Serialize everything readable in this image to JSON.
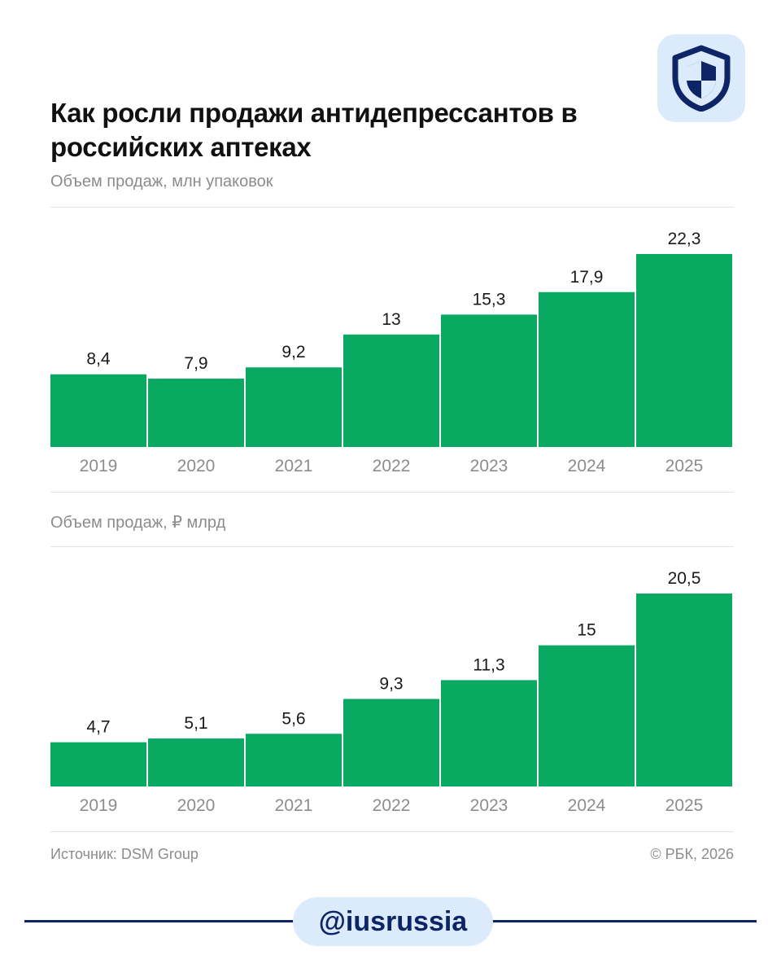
{
  "title": "Как росли продажи антидепрессантов в российских аптеках",
  "colors": {
    "bar": "#0aa962",
    "label": "#1a1a1a",
    "tick": "#8c8c8c",
    "brand": "#0d2466",
    "badge": "#dcebfb"
  },
  "icons": {
    "logo": "shield-icon"
  },
  "chart_data": [
    {
      "type": "bar",
      "title": "Объем продаж, млн упаковок",
      "xlabel": "",
      "ylabel": "",
      "categories": [
        "2019",
        "2020",
        "2021",
        "2022",
        "2023",
        "2024",
        "2025"
      ],
      "values": [
        8.4,
        7.9,
        9.2,
        13,
        15.3,
        17.9,
        22.3
      ],
      "value_labels": [
        "8,4",
        "7,9",
        "9,2",
        "13",
        "15,3",
        "17,9",
        "22,3"
      ],
      "ylim": [
        0,
        22.3
      ],
      "grid": false
    },
    {
      "type": "bar",
      "title": "Объем продаж, ₽ млрд",
      "xlabel": "",
      "ylabel": "",
      "categories": [
        "2019",
        "2020",
        "2021",
        "2022",
        "2023",
        "2024",
        "2025"
      ],
      "values": [
        4.7,
        5.1,
        5.6,
        9.3,
        11.3,
        15,
        20.5
      ],
      "value_labels": [
        "4,7",
        "5,1",
        "5,6",
        "9,3",
        "11,3",
        "15",
        "20,5"
      ],
      "ylim": [
        0,
        20.5
      ],
      "grid": false
    }
  ],
  "footer": {
    "source": "Источник: DSM Group",
    "copyright": "© РБК, 2026"
  },
  "handle": "@iusrussia"
}
